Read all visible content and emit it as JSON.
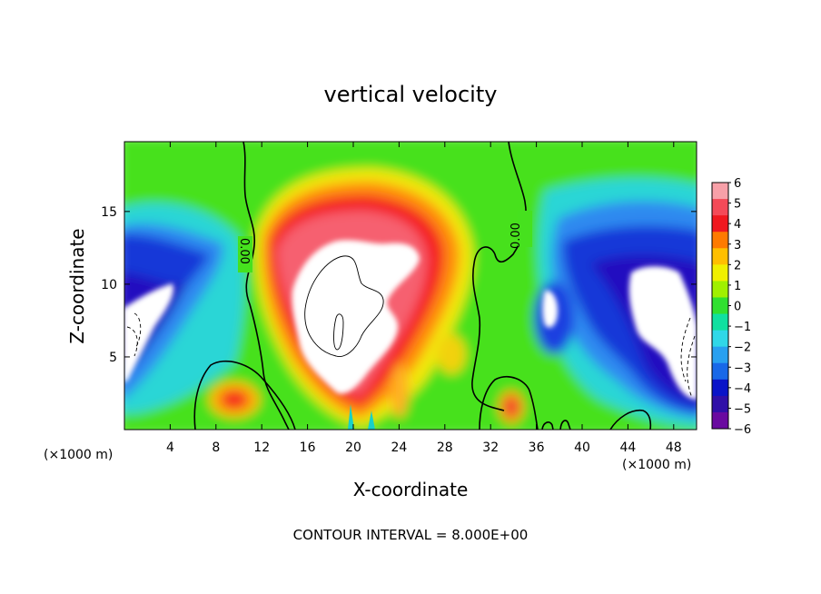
{
  "chart_data": {
    "type": "heatmap",
    "title": "vertical velocity",
    "xlabel": "X-coordinate",
    "ylabel": "Z-coordinate",
    "x_unit_note": "(×1000 m)",
    "x_unit_note_right": "(×1000 m)",
    "contour_interval_text": "CONTOUR INTERVAL = 8.000E+00",
    "xlim": [
      0,
      50
    ],
    "ylim": [
      0,
      19.8
    ],
    "x_ticks": [
      4,
      8,
      12,
      16,
      20,
      24,
      28,
      32,
      36,
      40,
      44,
      48
    ],
    "y_ticks": [
      5,
      10,
      15
    ],
    "colorbar": {
      "levels": [
        6,
        5,
        4,
        3,
        2,
        1,
        0,
        -1,
        -2,
        -3,
        -4,
        -5,
        -6
      ],
      "labels": [
        "6",
        "5",
        "4",
        "3",
        "2",
        "1",
        "0",
        "−1",
        "−2",
        "−3",
        "−4",
        "−5",
        "−6"
      ],
      "colors": [
        "#f7a0a8",
        "#f44a58",
        "#f0181f",
        "#ff7a00",
        "#ffbf00",
        "#f0f000",
        "#a0f000",
        "#30e030",
        "#10e0a0",
        "#30d8e8",
        "#28a0f0",
        "#1868e8",
        "#0a14c8",
        "#3010a8",
        "#6a0aa0"
      ],
      "clip_high_color": "#ffffff"
    },
    "contour_labels": [
      {
        "text": "0.00",
        "x": 8.3,
        "y": 11.8,
        "rotation": -90
      },
      {
        "text": "0.00",
        "x": 35.2,
        "y": 13.2,
        "rotation": -90
      }
    ]
  }
}
